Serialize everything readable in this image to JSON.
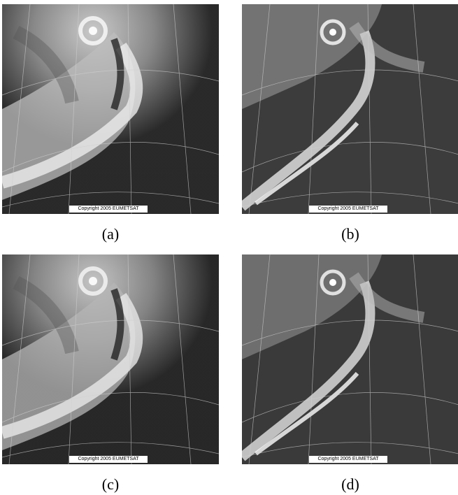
{
  "panels": [
    {
      "id": "a",
      "caption": "(a)",
      "copyright": "Copyright 2005 EUMETSAT",
      "variant": "bright"
    },
    {
      "id": "b",
      "caption": "(b)",
      "copyright": "Copyright 2005 EUMETSAT",
      "variant": "contrast"
    },
    {
      "id": "c",
      "caption": "(c)",
      "copyright": "Copyright 2005 EUMETSAT",
      "variant": "bright"
    },
    {
      "id": "d",
      "caption": "(d)",
      "copyright": "Copyright 2005 EUMETSAT",
      "variant": "contrast"
    }
  ]
}
